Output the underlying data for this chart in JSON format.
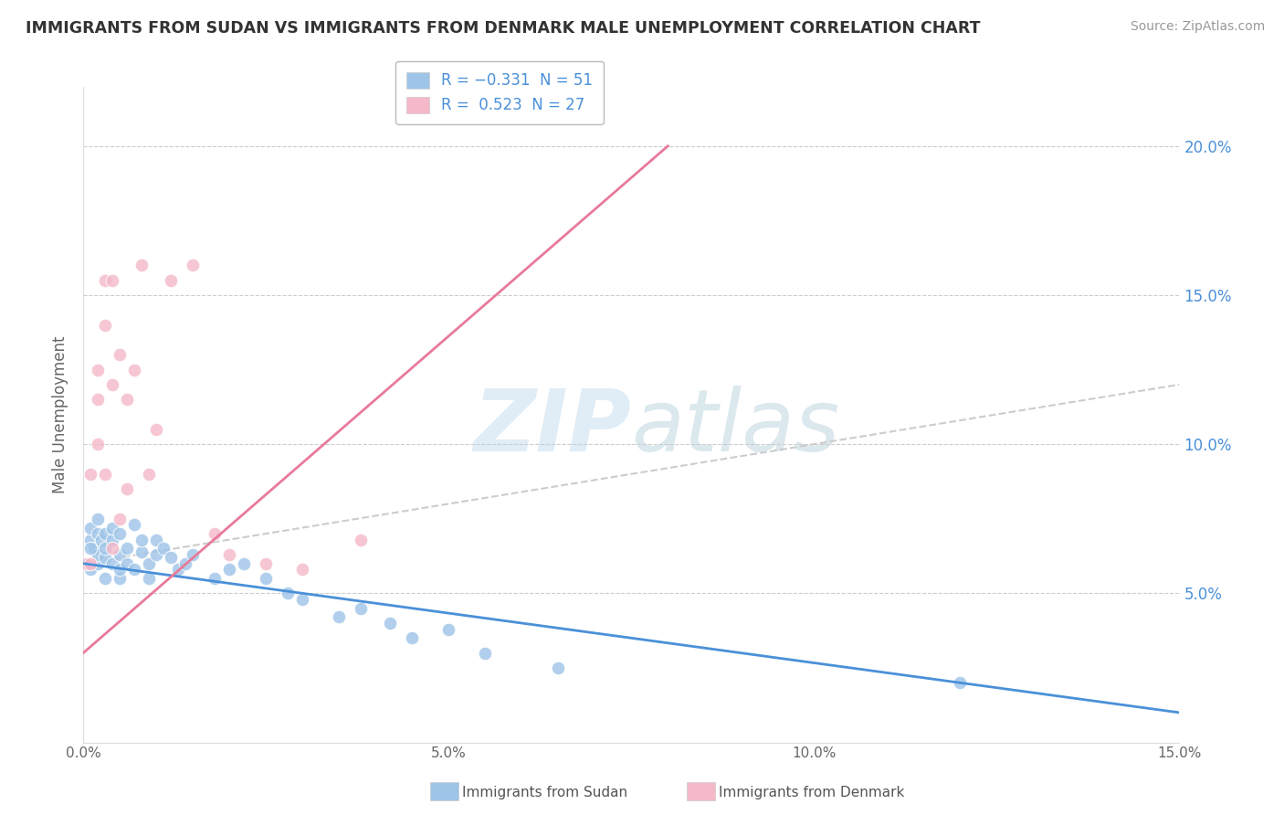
{
  "title": "IMMIGRANTS FROM SUDAN VS IMMIGRANTS FROM DENMARK MALE UNEMPLOYMENT CORRELATION CHART",
  "source": "Source: ZipAtlas.com",
  "ylabel": "Male Unemployment",
  "xlim": [
    0.0,
    0.15
  ],
  "ylim": [
    0.0,
    0.22
  ],
  "x_ticks": [
    0.0,
    0.05,
    0.1,
    0.15
  ],
  "x_tick_labels": [
    "0.0%",
    "5.0%",
    "10.0%",
    "15.0%"
  ],
  "y_ticks": [
    0.05,
    0.1,
    0.15,
    0.2
  ],
  "y_tick_labels": [
    "5.0%",
    "10.0%",
    "15.0%",
    "20.0%"
  ],
  "sudan_r": -0.331,
  "sudan_n": 51,
  "denmark_r": 0.523,
  "denmark_n": 27,
  "sudan_color": "#9ec4e8",
  "denmark_color": "#f4b8c8",
  "sudan_line_color": "#4a90d9",
  "denmark_line_color": "#e87a9a",
  "trendline_color": "#cccccc",
  "watermark_zip": "ZIP",
  "watermark_atlas": "atlas",
  "sudan_points_x": [
    0.0005,
    0.001,
    0.001,
    0.001,
    0.0015,
    0.002,
    0.002,
    0.002,
    0.002,
    0.0025,
    0.003,
    0.003,
    0.003,
    0.003,
    0.004,
    0.004,
    0.004,
    0.005,
    0.005,
    0.005,
    0.005,
    0.006,
    0.006,
    0.007,
    0.007,
    0.008,
    0.008,
    0.009,
    0.009,
    0.01,
    0.01,
    0.011,
    0.012,
    0.013,
    0.014,
    0.015,
    0.018,
    0.02,
    0.022,
    0.025,
    0.028,
    0.03,
    0.035,
    0.038,
    0.042,
    0.045,
    0.05,
    0.055,
    0.065,
    0.12,
    0.001
  ],
  "sudan_points_y": [
    0.06,
    0.068,
    0.072,
    0.058,
    0.065,
    0.06,
    0.07,
    0.075,
    0.063,
    0.068,
    0.055,
    0.062,
    0.07,
    0.065,
    0.06,
    0.068,
    0.072,
    0.055,
    0.063,
    0.07,
    0.058,
    0.065,
    0.06,
    0.073,
    0.058,
    0.064,
    0.068,
    0.055,
    0.06,
    0.068,
    0.063,
    0.065,
    0.062,
    0.058,
    0.06,
    0.063,
    0.055,
    0.058,
    0.06,
    0.055,
    0.05,
    0.048,
    0.042,
    0.045,
    0.04,
    0.035,
    0.038,
    0.03,
    0.025,
    0.02,
    0.065
  ],
  "denmark_points_x": [
    0.0005,
    0.001,
    0.001,
    0.002,
    0.002,
    0.002,
    0.003,
    0.003,
    0.003,
    0.004,
    0.004,
    0.004,
    0.005,
    0.005,
    0.006,
    0.006,
    0.007,
    0.008,
    0.009,
    0.01,
    0.012,
    0.015,
    0.018,
    0.02,
    0.025,
    0.03,
    0.038
  ],
  "denmark_points_y": [
    0.06,
    0.06,
    0.09,
    0.115,
    0.125,
    0.1,
    0.14,
    0.155,
    0.09,
    0.12,
    0.155,
    0.065,
    0.13,
    0.075,
    0.115,
    0.085,
    0.125,
    0.16,
    0.09,
    0.105,
    0.155,
    0.16,
    0.07,
    0.063,
    0.06,
    0.058,
    0.068
  ]
}
